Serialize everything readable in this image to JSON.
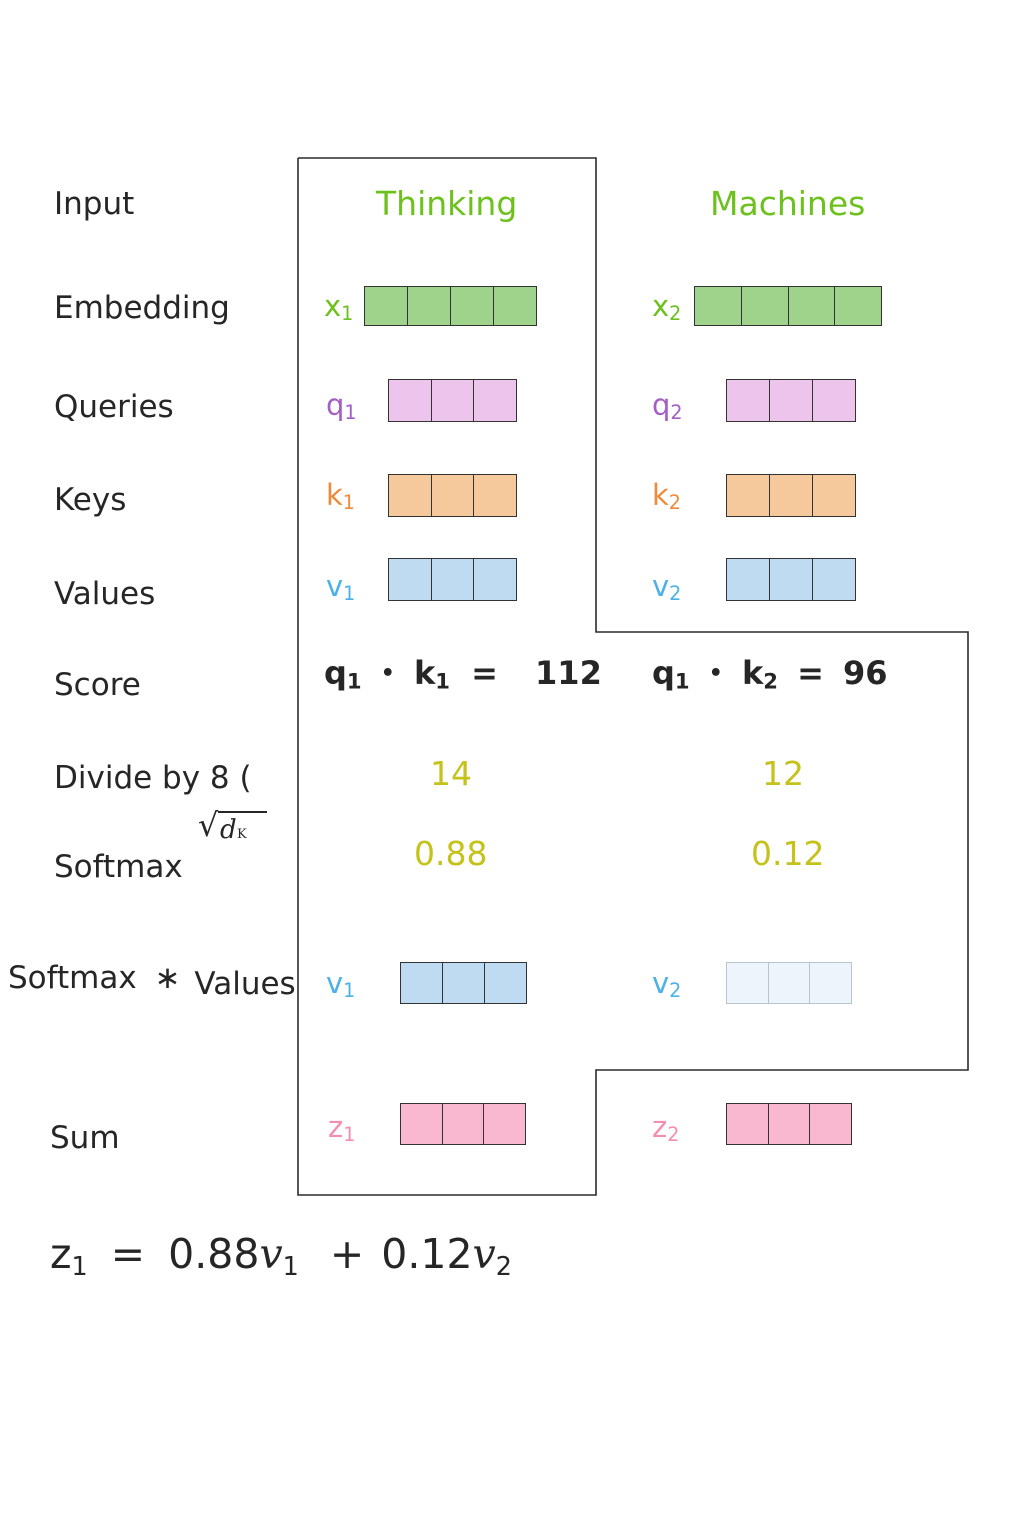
{
  "rows": {
    "input": "Input",
    "embedding": "Embedding",
    "queries": "Queries",
    "keys": "Keys",
    "values": "Values",
    "score": "Score",
    "divide": "Divide by 8  (",
    "softmax": "Softmax",
    "softmax_values_a": "Softmax",
    "softmax_values_op": "∗",
    "softmax_values_b": "Values",
    "sum": "Sum"
  },
  "sqrt_dk": {
    "radical": "√",
    "d": "d",
    "k": "K"
  },
  "words": [
    "Thinking",
    "Machines"
  ],
  "symbols": {
    "x1": {
      "base": "x",
      "sub": "1"
    },
    "x2": {
      "base": "x",
      "sub": "2"
    },
    "q1": {
      "base": "q",
      "sub": "1"
    },
    "q2": {
      "base": "q",
      "sub": "2"
    },
    "k1": {
      "base": "k",
      "sub": "1"
    },
    "k2": {
      "base": "k",
      "sub": "2"
    },
    "v1": {
      "base": "v",
      "sub": "1"
    },
    "v2": {
      "base": "v",
      "sub": "2"
    },
    "z1": {
      "base": "z",
      "sub": "1"
    },
    "z2": {
      "base": "z",
      "sub": "2"
    }
  },
  "scores": {
    "left": {
      "q": "q",
      "q_sub": "1",
      "dot": "•",
      "k": "k",
      "k_sub": "1",
      "eq": "=",
      "value": "112"
    },
    "right": {
      "q": "q",
      "q_sub": "1",
      "dot": "•",
      "k": "k",
      "k_sub": "2",
      "eq": "=",
      "value": "96"
    }
  },
  "divided": [
    "14",
    "12"
  ],
  "softmax_values": [
    "0.88",
    "0.12"
  ],
  "equation": {
    "lhs": "z",
    "lhs_sub": "1",
    "eq": "=",
    "c1": "0.88",
    "v1": "v",
    "v1_sub": "1",
    "plus": "+",
    "c2": "0.12",
    "v2": "v",
    "v2_sub": "2"
  },
  "colors": {
    "word": "#6cc11c",
    "embedding": "#9fd38c",
    "query": "#ecc4ec",
    "key": "#f5c99b",
    "value": "#bedbf2",
    "value_faint": "#eef4fb",
    "z": "#f9b8cf",
    "x_label": "#6cc11c",
    "q_label": "#a35fc5",
    "k_label": "#ef8a3a",
    "v_label": "#4cb1e6",
    "z_label": "#f28fb0",
    "number": "#c6c21c"
  }
}
